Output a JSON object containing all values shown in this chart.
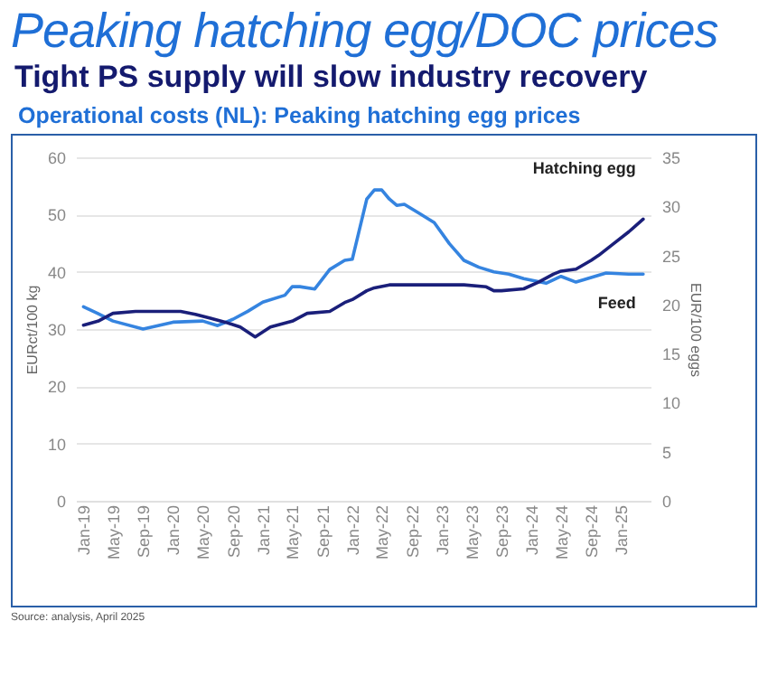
{
  "chart_data": {
    "type": "line",
    "title": "Peaking hatching egg/DOC prices",
    "subtitle": "Tight PS supply will slow industry recovery",
    "annotations": [
      "Operational costs (NL): Peaking hatching egg prices",
      "Source: analysis, April 2025"
    ],
    "ylabel": "EURct/100 kg",
    "y2label": "EUR/100 eggs",
    "xlim": [
      "2018-12",
      "2025-05"
    ],
    "xticks": [
      {
        "value": "2019-01",
        "label": "Jan-19"
      },
      {
        "value": "2019-05",
        "label": "May-19"
      },
      {
        "value": "2019-09",
        "label": "Sep-19"
      },
      {
        "value": "2020-01",
        "label": "Jan-20"
      },
      {
        "value": "2020-05",
        "label": "May-20"
      },
      {
        "value": "2020-09",
        "label": "Sep-20"
      },
      {
        "value": "2021-01",
        "label": "Jan-21"
      },
      {
        "value": "2021-05",
        "label": "May-21"
      },
      {
        "value": "2021-09",
        "label": "Sep-21"
      },
      {
        "value": "2022-01",
        "label": "Jan-22"
      },
      {
        "value": "2022-05",
        "label": "May-22"
      },
      {
        "value": "2022-09",
        "label": "Sep-22"
      },
      {
        "value": "2023-01",
        "label": "Jan-23"
      },
      {
        "value": "2023-05",
        "label": "May-23"
      },
      {
        "value": "2023-09",
        "label": "Sep-23"
      },
      {
        "value": "2024-01",
        "label": "Jan-24"
      },
      {
        "value": "2024-05",
        "label": "May-24"
      },
      {
        "value": "2024-09",
        "label": "Sep-24"
      },
      {
        "value": "2025-01",
        "label": "Jan-25"
      }
    ],
    "ylim": [
      0,
      60
    ],
    "yticks": [
      0,
      10,
      20,
      30,
      40,
      50,
      60
    ],
    "y2lim": [
      0,
      35
    ],
    "y2ticks": [
      0,
      5,
      10,
      15,
      20,
      25,
      30,
      35
    ],
    "grid": "y",
    "legend": false,
    "series": [
      {
        "name": "Feed",
        "color": "#3584e0",
        "x": [
          "2019-01",
          "2019-03",
          "2019-05",
          "2019-09",
          "2019-11",
          "2020-01",
          "2020-05",
          "2020-07",
          "2020-09",
          "2020-11",
          "2021-01",
          "2021-04",
          "2021-05",
          "2021-06",
          "2021-08",
          "2021-10",
          "2021-12",
          "2022-01",
          "2022-03",
          "2022-04",
          "2022-05",
          "2022-06",
          "2022-07",
          "2022-08",
          "2022-10",
          "2022-12",
          "2023-02",
          "2023-04",
          "2023-06",
          "2023-08",
          "2023-10",
          "2023-12",
          "2024-03",
          "2024-05",
          "2024-07",
          "2024-08",
          "2024-11",
          "2025-02",
          "2025-04"
        ],
        "values": [
          33.9,
          32.7,
          31.4,
          30.0,
          30.6,
          31.2,
          31.4,
          30.6,
          31.7,
          33.1,
          34.7,
          35.9,
          37.4,
          37.4,
          37.0,
          40.4,
          42.0,
          42.2,
          52.7,
          54.3,
          54.3,
          52.7,
          51.6,
          51.8,
          50.2,
          48.6,
          44.9,
          42.0,
          40.8,
          40.0,
          39.6,
          38.8,
          38.0,
          39.2,
          38.2,
          38.6,
          39.8,
          39.6,
          39.6
        ]
      },
      {
        "name": "Hatching egg",
        "color": "#1a1f7a",
        "axis": "y2",
        "x": [
          "2019-01",
          "2019-03",
          "2019-05",
          "2019-08",
          "2020-02",
          "2020-04",
          "2020-06",
          "2020-08",
          "2020-10",
          "2020-12",
          "2021-02",
          "2021-05",
          "2021-07",
          "2021-10",
          "2021-12",
          "2022-01",
          "2022-03",
          "2022-04",
          "2022-06",
          "2023-04",
          "2023-07",
          "2023-08",
          "2023-09",
          "2023-12",
          "2024-02",
          "2024-04",
          "2024-05",
          "2024-07",
          "2024-09",
          "2024-10",
          "2024-12",
          "2025-02",
          "2025-04"
        ],
        "values": [
          17.9,
          18.3,
          19.1,
          19.3,
          19.3,
          19.0,
          18.6,
          18.2,
          17.7,
          16.7,
          17.7,
          18.3,
          19.1,
          19.3,
          20.2,
          20.5,
          21.4,
          21.7,
          22.0,
          22.0,
          21.8,
          21.4,
          21.4,
          21.6,
          22.3,
          23.1,
          23.4,
          23.6,
          24.5,
          25.0,
          26.2,
          27.4,
          28.7
        ]
      }
    ]
  }
}
